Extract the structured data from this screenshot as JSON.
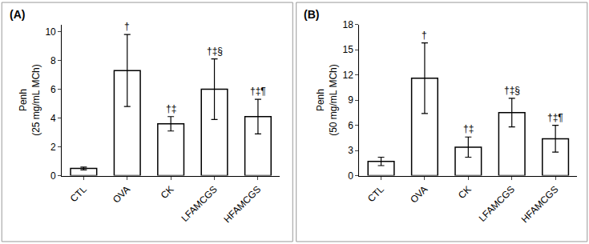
{
  "chart_data": [
    {
      "type": "bar",
      "panel": "(A)",
      "y_label": [
        "Penh",
        "(25 mg/mL MCh)"
      ],
      "categories": [
        "CTL",
        "OVA",
        "CK",
        "LFAMCGS",
        "HFAMCGS"
      ],
      "values": [
        0.5,
        7.3,
        3.6,
        6.0,
        4.1
      ],
      "errors": [
        0.1,
        2.5,
        0.5,
        2.1,
        1.2
      ],
      "significance": [
        null,
        "†",
        "†‡",
        "†‡§",
        "†‡¶"
      ],
      "color": "#ffffff",
      "ylim": [
        0,
        10.5
      ],
      "yticks": [
        0,
        2,
        4,
        6,
        8,
        10
      ],
      "grid": false
    },
    {
      "type": "bar",
      "panel": "(B)",
      "y_label": [
        "Penh",
        "(50 mg/mL MCh)"
      ],
      "categories": [
        "CTL",
        "OVA",
        "CK",
        "LFAMCGS",
        "HFAMCGS"
      ],
      "values": [
        1.7,
        11.6,
        3.4,
        7.5,
        4.4
      ],
      "errors": [
        0.5,
        4.2,
        1.2,
        1.7,
        1.6
      ],
      "significance": [
        null,
        "†",
        "†‡",
        "†‡§",
        "†‡¶"
      ],
      "color": "#ffffff",
      "ylim": [
        0,
        18
      ],
      "yticks": [
        0,
        3,
        6,
        9,
        12,
        15,
        18
      ],
      "grid": false
    }
  ]
}
